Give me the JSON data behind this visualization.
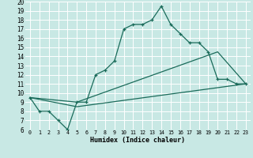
{
  "xlabel": "Humidex (Indice chaleur)",
  "xlim": [
    -0.5,
    23.5
  ],
  "ylim": [
    6,
    20
  ],
  "xticks": [
    0,
    1,
    2,
    3,
    4,
    5,
    6,
    7,
    8,
    9,
    10,
    11,
    12,
    13,
    14,
    15,
    16,
    17,
    18,
    19,
    20,
    21,
    22,
    23
  ],
  "yticks": [
    6,
    7,
    8,
    9,
    10,
    11,
    12,
    13,
    14,
    15,
    16,
    17,
    18,
    19,
    20
  ],
  "bg_color": "#c8e8e4",
  "grid_color": "#ffffff",
  "line_color": "#1a6b5a",
  "line1_x": [
    0,
    1,
    2,
    3,
    4,
    5,
    6,
    7,
    8,
    9,
    10,
    11,
    12,
    13,
    14,
    15,
    16,
    17,
    18,
    19,
    20,
    21,
    22,
    23
  ],
  "line1_y": [
    9.5,
    8.0,
    8.0,
    7.0,
    6.0,
    9.0,
    9.0,
    12.0,
    12.5,
    13.5,
    17.0,
    17.5,
    17.5,
    18.0,
    19.5,
    17.5,
    16.5,
    15.5,
    15.5,
    14.5,
    11.5,
    11.5,
    11.0,
    11.0
  ],
  "line2_x": [
    0,
    5,
    20,
    23
  ],
  "line2_y": [
    9.5,
    9.0,
    14.5,
    11.0
  ],
  "line3_x": [
    0,
    5,
    23
  ],
  "line3_y": [
    9.5,
    8.5,
    11.0
  ]
}
